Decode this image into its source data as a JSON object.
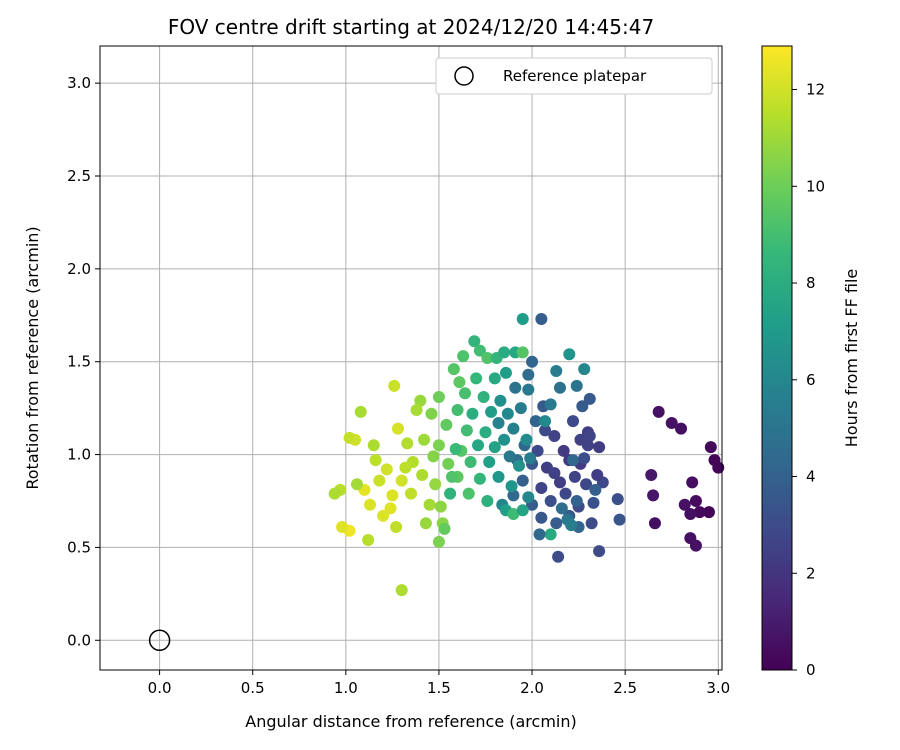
{
  "chart_data": {
    "type": "scatter",
    "title": "FOV centre drift starting at 2024/12/20 14:45:47",
    "xlabel": "Angular distance from reference (arcmin)",
    "ylabel": "Rotation from reference (arcmin)",
    "xlim": [
      -0.32,
      3.02
    ],
    "ylim": [
      -0.16,
      3.2
    ],
    "x_ticks": [
      "0.0",
      "0.5",
      "1.0",
      "1.5",
      "2.0",
      "2.5",
      "3.0"
    ],
    "y_ticks": [
      "0.0",
      "0.5",
      "1.0",
      "1.5",
      "2.0",
      "2.5",
      "3.0"
    ],
    "grid": true,
    "legend": {
      "placement": "top-right",
      "label": "Reference platepar"
    },
    "reference_point": {
      "x": 0.0,
      "y": 0.0
    },
    "colorbar": {
      "label": "Hours from first FF file",
      "min": 0,
      "max": 12.9,
      "ticks": [
        "0",
        "2",
        "4",
        "6",
        "8",
        "10",
        "12"
      ],
      "colormap": "viridis",
      "colors": [
        "#440154",
        "#482878",
        "#3e4989",
        "#31688e",
        "#26828e",
        "#1f9e89",
        "#35b779",
        "#6ece58",
        "#b5de2b",
        "#fde725"
      ]
    },
    "points": [
      [
        2.98,
        0.97,
        0.1
      ],
      [
        2.95,
        0.69,
        0.2
      ],
      [
        2.9,
        0.69,
        0.3
      ],
      [
        2.96,
        1.04,
        0.3
      ],
      [
        3.0,
        0.93,
        0.1
      ],
      [
        2.88,
        0.75,
        0.4
      ],
      [
        2.85,
        0.68,
        0.5
      ],
      [
        2.88,
        0.51,
        0.6
      ],
      [
        2.85,
        0.55,
        0.6
      ],
      [
        2.86,
        0.85,
        0.5
      ],
      [
        2.82,
        0.73,
        0.6
      ],
      [
        2.8,
        1.14,
        0.5
      ],
      [
        2.75,
        1.17,
        0.6
      ],
      [
        2.68,
        1.23,
        0.6
      ],
      [
        2.66,
        0.63,
        0.5
      ],
      [
        2.65,
        0.78,
        0.8
      ],
      [
        2.64,
        0.89,
        0.9
      ],
      [
        2.47,
        0.65,
        3.4
      ],
      [
        2.46,
        0.76,
        3.2
      ],
      [
        2.38,
        0.85,
        2.8
      ],
      [
        2.36,
        0.48,
        3.0
      ],
      [
        2.35,
        0.89,
        2.4
      ],
      [
        2.33,
        0.74,
        3.3
      ],
      [
        2.32,
        0.63,
        3.0
      ],
      [
        2.3,
        1.05,
        2.5
      ],
      [
        2.3,
        1.12,
        2.4
      ],
      [
        2.31,
        1.3,
        3.6
      ],
      [
        2.27,
        1.26,
        3.7
      ],
      [
        2.26,
        1.08,
        2.5
      ],
      [
        2.26,
        0.95,
        2.2
      ],
      [
        2.25,
        0.72,
        2.9
      ],
      [
        2.25,
        0.61,
        4.2
      ],
      [
        2.23,
        0.88,
        2.6
      ],
      [
        2.22,
        1.18,
        2.9
      ],
      [
        2.2,
        0.97,
        2.1
      ],
      [
        2.2,
        0.67,
        3.5
      ],
      [
        2.18,
        0.79,
        2.8
      ],
      [
        2.17,
        1.02,
        2.2
      ],
      [
        2.15,
        0.85,
        2.4
      ],
      [
        2.14,
        0.45,
        3.0
      ],
      [
        2.13,
        0.63,
        3.8
      ],
      [
        2.12,
        1.1,
        2.6
      ],
      [
        2.1,
        0.57,
        7.8
      ],
      [
        2.1,
        0.75,
        3.2
      ],
      [
        2.08,
        0.93,
        2.3
      ],
      [
        2.07,
        1.13,
        3.0
      ],
      [
        2.06,
        1.26,
        3.6
      ],
      [
        2.05,
        0.82,
        2.7
      ],
      [
        2.05,
        0.66,
        3.5
      ],
      [
        2.04,
        0.57,
        4.3
      ],
      [
        2.03,
        1.02,
        2.9
      ],
      [
        2.02,
        1.18,
        4.1
      ],
      [
        2.0,
        0.95,
        3.5
      ],
      [
        2.0,
        0.73,
        3.8
      ],
      [
        2.0,
        1.5,
        4.2
      ],
      [
        1.98,
        1.43,
        4.6
      ],
      [
        1.98,
        1.35,
        5.2
      ],
      [
        2.05,
        1.73,
        3.8
      ],
      [
        1.96,
        1.05,
        4.3
      ],
      [
        1.95,
        0.86,
        3.9
      ],
      [
        1.94,
        1.25,
        5.4
      ],
      [
        1.92,
        0.97,
        4.6
      ],
      [
        1.91,
        1.36,
        4.9
      ],
      [
        1.9,
        1.14,
        5.6
      ],
      [
        1.9,
        0.78,
        4.4
      ],
      [
        1.88,
        0.99,
        5.1
      ],
      [
        1.87,
        1.22,
        6.1
      ],
      [
        1.86,
        1.44,
        7.1
      ],
      [
        1.85,
        1.08,
        6.5
      ],
      [
        1.84,
        0.73,
        6.0
      ],
      [
        1.83,
        1.29,
        6.4
      ],
      [
        1.82,
        0.88,
        6.8
      ],
      [
        1.82,
        1.17,
        5.8
      ],
      [
        1.8,
        1.04,
        7.4
      ],
      [
        1.8,
        1.41,
        7.8
      ],
      [
        1.78,
        1.23,
        7.1
      ],
      [
        1.77,
        0.96,
        7.2
      ],
      [
        1.76,
        0.75,
        8.2
      ],
      [
        1.75,
        1.12,
        8.0
      ],
      [
        1.74,
        1.31,
        8.3
      ],
      [
        1.72,
        0.87,
        8.5
      ],
      [
        1.71,
        1.05,
        7.7
      ],
      [
        1.7,
        1.41,
        8.6
      ],
      [
        1.68,
        1.22,
        8.1
      ],
      [
        1.67,
        0.96,
        8.8
      ],
      [
        1.66,
        0.79,
        9.2
      ],
      [
        1.65,
        1.13,
        8.9
      ],
      [
        1.64,
        1.33,
        9.1
      ],
      [
        1.62,
        1.02,
        9.4
      ],
      [
        1.6,
        0.88,
        9.6
      ],
      [
        1.6,
        1.24,
        9.0
      ],
      [
        1.58,
        1.46,
        9.4
      ],
      [
        1.56,
        0.79,
        8.3
      ],
      [
        1.55,
        0.95,
        10.1
      ],
      [
        1.54,
        1.16,
        9.7
      ],
      [
        1.52,
        0.63,
        10.6
      ],
      [
        1.5,
        1.05,
        10.3
      ],
      [
        1.5,
        1.31,
        10.0
      ],
      [
        1.48,
        0.84,
        10.8
      ],
      [
        1.47,
        0.99,
        10.5
      ],
      [
        1.46,
        1.22,
        10.4
      ],
      [
        1.45,
        0.73,
        11.1
      ],
      [
        1.43,
        0.63,
        10.9
      ],
      [
        1.42,
        1.08,
        11.0
      ],
      [
        1.41,
        0.89,
        11.3
      ],
      [
        1.4,
        1.29,
        10.9
      ],
      [
        1.38,
        1.24,
        11.2
      ],
      [
        1.36,
        0.96,
        11.4
      ],
      [
        1.35,
        0.79,
        11.7
      ],
      [
        1.33,
        1.06,
        11.4
      ],
      [
        1.32,
        0.93,
        11.6
      ],
      [
        1.3,
        0.27,
        11.3
      ],
      [
        1.3,
        0.86,
        12.0
      ],
      [
        1.28,
        1.14,
        12.1
      ],
      [
        1.27,
        0.61,
        11.7
      ],
      [
        1.26,
        1.37,
        11.9
      ],
      [
        1.25,
        0.78,
        12.2
      ],
      [
        1.24,
        0.71,
        12.3
      ],
      [
        1.22,
        0.92,
        12.0
      ],
      [
        1.2,
        0.67,
        12.2
      ],
      [
        1.18,
        0.86,
        11.9
      ],
      [
        1.16,
        0.97,
        11.6
      ],
      [
        1.15,
        1.05,
        11.3
      ],
      [
        1.13,
        0.73,
        12.2
      ],
      [
        1.12,
        0.54,
        11.5
      ],
      [
        1.1,
        0.81,
        12.4
      ],
      [
        1.08,
        1.23,
        11.2
      ],
      [
        1.06,
        0.84,
        11.1
      ],
      [
        1.05,
        1.08,
        12.0
      ],
      [
        1.02,
        0.59,
        12.6
      ],
      [
        1.02,
        1.09,
        11.8
      ],
      [
        0.98,
        0.61,
        12.3
      ],
      [
        0.97,
        0.81,
        11.5
      ],
      [
        0.94,
        0.79,
        11.3
      ],
      [
        1.5,
        0.53,
        10.3
      ],
      [
        1.51,
        0.72,
        10.7
      ],
      [
        1.53,
        0.6,
        9.8
      ],
      [
        1.57,
        0.88,
        9.3
      ],
      [
        1.59,
        1.03,
        8.7
      ],
      [
        1.61,
        1.39,
        9.6
      ],
      [
        1.63,
        1.53,
        9.2
      ],
      [
        1.69,
        1.61,
        8.4
      ],
      [
        1.72,
        1.56,
        8.9
      ],
      [
        1.76,
        1.52,
        9.3
      ],
      [
        1.81,
        1.52,
        8.4
      ],
      [
        1.85,
        1.55,
        7.9
      ],
      [
        1.91,
        1.55,
        7.7
      ],
      [
        1.95,
        1.55,
        9.4
      ],
      [
        1.95,
        1.73,
        7.1
      ],
      [
        2.13,
        1.45,
        5.4
      ],
      [
        2.2,
        1.54,
        6.7
      ],
      [
        2.28,
        1.46,
        6.0
      ],
      [
        2.24,
        1.37,
        4.9
      ],
      [
        2.15,
        1.36,
        4.8
      ],
      [
        2.1,
        1.27,
        5.3
      ],
      [
        2.07,
        1.18,
        6.1
      ],
      [
        1.97,
        1.08,
        6.2
      ],
      [
        1.93,
        0.94,
        6.6
      ],
      [
        1.89,
        0.83,
        6.7
      ],
      [
        1.86,
        0.7,
        7.2
      ],
      [
        1.9,
        0.68,
        8.8
      ],
      [
        1.95,
        0.7,
        7.5
      ],
      [
        1.98,
        0.77,
        6.0
      ],
      [
        1.99,
        0.98,
        5.4
      ],
      [
        2.12,
        0.9,
        2.5
      ],
      [
        2.16,
        0.71,
        4.6
      ],
      [
        2.19,
        0.65,
        5.2
      ],
      [
        2.21,
        0.62,
        5.5
      ],
      [
        2.24,
        0.75,
        4.0
      ],
      [
        2.22,
        0.97,
        4.3
      ],
      [
        2.28,
        0.98,
        3.1
      ],
      [
        2.31,
        1.1,
        2.7
      ],
      [
        2.29,
        0.84,
        2.8
      ],
      [
        2.34,
        0.81,
        3.9
      ],
      [
        2.36,
        1.04,
        2.3
      ]
    ]
  }
}
